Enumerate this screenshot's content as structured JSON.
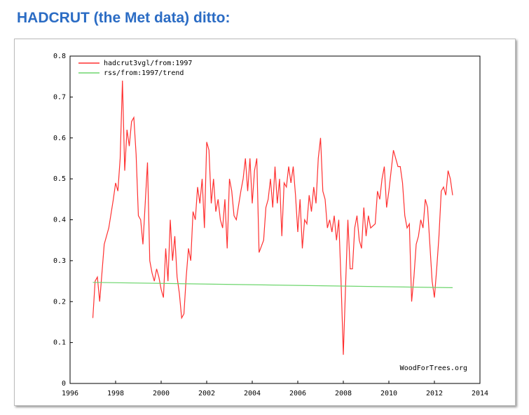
{
  "chart_data": {
    "type": "line",
    "title": "HADCRUT (the Met data) ditto:",
    "annotation": "WoodForTrees.org",
    "xlim": [
      1996,
      2014
    ],
    "xticks": [
      1996,
      1998,
      2000,
      2002,
      2004,
      2006,
      2008,
      2010,
      2012,
      2014
    ],
    "ylim": [
      0,
      0.8
    ],
    "yticks": [
      0,
      0.1,
      0.2,
      0.3,
      0.4,
      0.5,
      0.6,
      0.7,
      0.8
    ],
    "grid": false,
    "legend": "top-left",
    "series": [
      {
        "name": "hadcrut3vgl/from:1997",
        "color": "#ff3030",
        "x": [
          1997.0,
          1997.1,
          1997.2,
          1997.3,
          1997.5,
          1997.7,
          1997.9,
          1998.0,
          1998.1,
          1998.2,
          1998.3,
          1998.4,
          1998.5,
          1998.6,
          1998.7,
          1998.8,
          1998.9,
          1999.0,
          1999.1,
          1999.2,
          1999.3,
          1999.4,
          1999.5,
          1999.6,
          1999.7,
          1999.8,
          1999.9,
          2000.0,
          2000.1,
          2000.2,
          2000.3,
          2000.4,
          2000.5,
          2000.6,
          2000.7,
          2000.8,
          2000.9,
          2001.0,
          2001.1,
          2001.2,
          2001.3,
          2001.4,
          2001.5,
          2001.6,
          2001.7,
          2001.8,
          2001.9,
          2002.0,
          2002.1,
          2002.2,
          2002.3,
          2002.4,
          2002.5,
          2002.6,
          2002.7,
          2002.8,
          2002.9,
          2003.0,
          2003.1,
          2003.2,
          2003.3,
          2003.5,
          2003.6,
          2003.7,
          2003.8,
          2003.9,
          2004.0,
          2004.1,
          2004.2,
          2004.3,
          2004.5,
          2004.6,
          2004.7,
          2004.8,
          2004.9,
          2005.0,
          2005.1,
          2005.2,
          2005.3,
          2005.4,
          2005.5,
          2005.6,
          2005.7,
          2005.8,
          2005.9,
          2006.0,
          2006.1,
          2006.2,
          2006.3,
          2006.4,
          2006.5,
          2006.6,
          2006.7,
          2006.8,
          2006.9,
          2007.0,
          2007.1,
          2007.2,
          2007.3,
          2007.4,
          2007.5,
          2007.6,
          2007.7,
          2007.8,
          2007.9,
          2008.0,
          2008.1,
          2008.2,
          2008.3,
          2008.4,
          2008.5,
          2008.6,
          2008.7,
          2008.8,
          2008.9,
          2009.0,
          2009.1,
          2009.2,
          2009.4,
          2009.5,
          2009.6,
          2009.7,
          2009.8,
          2009.9,
          2010.0,
          2010.1,
          2010.2,
          2010.3,
          2010.4,
          2010.5,
          2010.6,
          2010.7,
          2010.8,
          2010.9,
          2011.0,
          2011.1,
          2011.2,
          2011.3,
          2011.4,
          2011.5,
          2011.6,
          2011.7,
          2011.8,
          2011.9,
          2012.0,
          2012.1,
          2012.2,
          2012.3,
          2012.4,
          2012.5,
          2012.6,
          2012.7,
          2012.8
        ],
        "values": [
          0.16,
          0.25,
          0.26,
          0.2,
          0.34,
          0.38,
          0.45,
          0.49,
          0.47,
          0.55,
          0.74,
          0.52,
          0.62,
          0.58,
          0.64,
          0.65,
          0.56,
          0.41,
          0.4,
          0.34,
          0.44,
          0.54,
          0.3,
          0.27,
          0.25,
          0.28,
          0.26,
          0.23,
          0.21,
          0.33,
          0.25,
          0.4,
          0.3,
          0.36,
          0.26,
          0.22,
          0.16,
          0.17,
          0.26,
          0.33,
          0.3,
          0.42,
          0.4,
          0.48,
          0.44,
          0.5,
          0.38,
          0.59,
          0.57,
          0.44,
          0.5,
          0.42,
          0.45,
          0.4,
          0.38,
          0.45,
          0.33,
          0.5,
          0.47,
          0.41,
          0.4,
          0.47,
          0.5,
          0.55,
          0.47,
          0.55,
          0.44,
          0.52,
          0.55,
          0.32,
          0.35,
          0.43,
          0.45,
          0.5,
          0.43,
          0.53,
          0.44,
          0.5,
          0.36,
          0.49,
          0.48,
          0.53,
          0.49,
          0.53,
          0.46,
          0.37,
          0.45,
          0.33,
          0.4,
          0.39,
          0.46,
          0.42,
          0.48,
          0.44,
          0.55,
          0.6,
          0.47,
          0.45,
          0.38,
          0.4,
          0.37,
          0.41,
          0.35,
          0.4,
          0.25,
          0.07,
          0.24,
          0.4,
          0.28,
          0.28,
          0.38,
          0.41,
          0.35,
          0.33,
          0.43,
          0.36,
          0.41,
          0.38,
          0.39,
          0.47,
          0.45,
          0.5,
          0.53,
          0.43,
          0.47,
          0.52,
          0.57,
          0.55,
          0.53,
          0.53,
          0.49,
          0.41,
          0.38,
          0.39,
          0.2,
          0.26,
          0.34,
          0.36,
          0.4,
          0.38,
          0.45,
          0.43,
          0.34,
          0.25,
          0.21,
          0.28,
          0.36,
          0.47,
          0.48,
          0.46,
          0.52,
          0.5,
          0.46
        ]
      },
      {
        "name": "rss/from:1997/trend",
        "color": "#6ed66e",
        "x": [
          1997.0,
          2012.8
        ],
        "values": [
          0.247,
          0.234
        ]
      }
    ]
  }
}
